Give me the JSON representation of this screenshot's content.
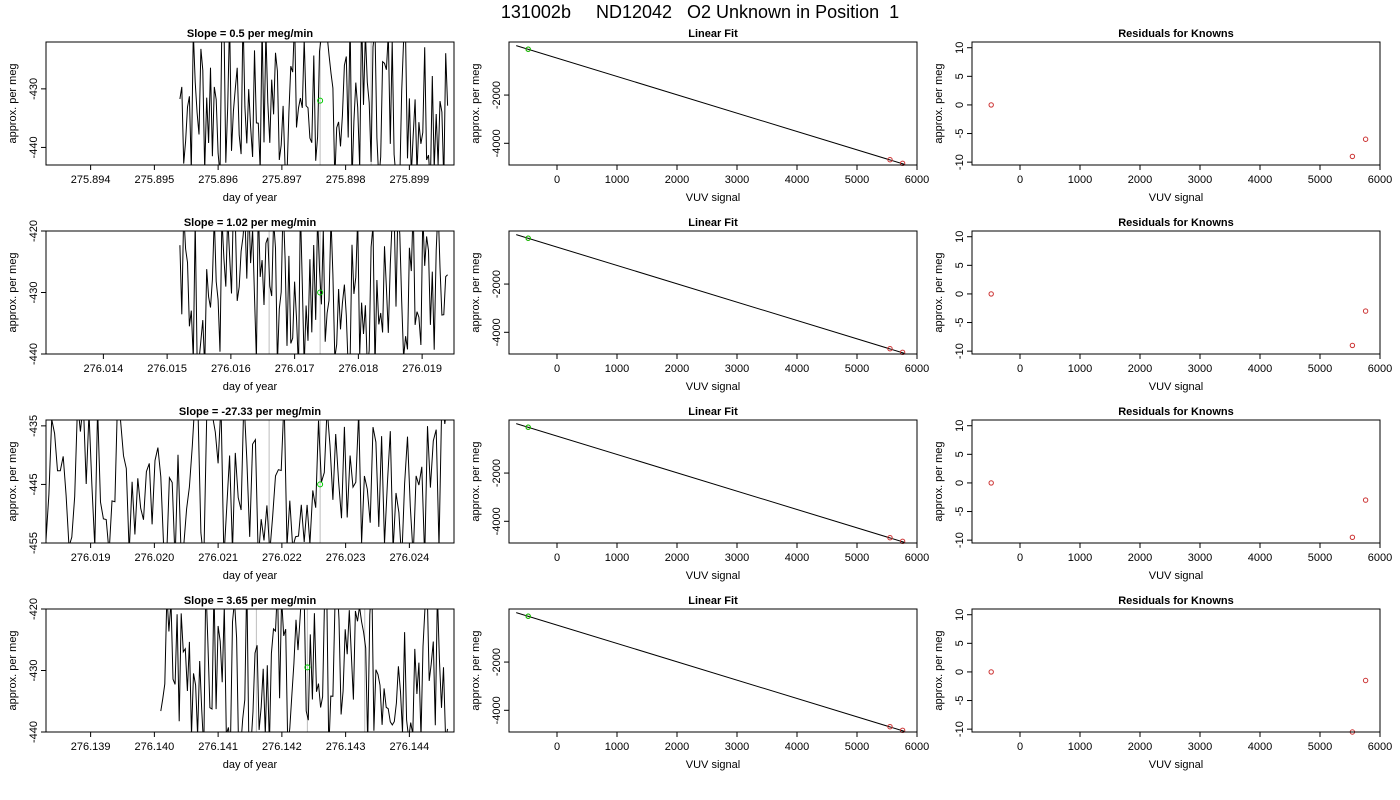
{
  "page_title": "131002b     ND12042   O2 Unknown in Position  1",
  "colors": {
    "trace": "#000000",
    "unknown_point": "#00cc00",
    "known_point": "#cc3333",
    "marker_line": "#bebebe",
    "fit_line": "#000000"
  },
  "chart_data": [
    {
      "type": "line",
      "panel": "time-series-1",
      "title": "Slope =  0.5  per meg/min",
      "xlabel": "day of year",
      "ylabel": "approx. per meg",
      "xlim": [
        275.8933,
        275.8997
      ],
      "ylim": [
        -443,
        -422
      ],
      "xticks": [
        "275.894",
        "275.895",
        "275.896",
        "275.897",
        "275.898",
        "275.899"
      ],
      "yticks": [
        "-440",
        "-430"
      ],
      "marker_lines_x": [
        275.8976,
        275.8984
      ],
      "unknown_point": [
        275.8976,
        -432
      ],
      "trace_start": 275.8954,
      "trace_end": 275.8996
    },
    {
      "type": "line",
      "panel": "time-series-2",
      "title": "Slope =  1.02  per meg/min",
      "xlabel": "day of year",
      "ylabel": "approx. per meg",
      "xlim": [
        276.0131,
        276.0195
      ],
      "ylim": [
        -440,
        -420
      ],
      "xticks": [
        "276.014",
        "276.015",
        "276.016",
        "276.017",
        "276.018",
        "276.019"
      ],
      "yticks": [
        "-440",
        "-430",
        "-420"
      ],
      "marker_lines_x": [
        276.0166,
        276.0174
      ],
      "unknown_point": [
        276.0174,
        -430
      ],
      "trace_start": 276.0152,
      "trace_end": 276.0194
    },
    {
      "type": "line",
      "panel": "time-series-3",
      "title": "Slope =  -27.33  per meg/min",
      "xlabel": "day of year",
      "ylabel": "approx. per meg",
      "xlim": [
        276.0183,
        276.0247
      ],
      "ylim": [
        -455,
        -434
      ],
      "xticks": [
        "276.019",
        "276.020",
        "276.021",
        "276.022",
        "276.023",
        "276.024"
      ],
      "yticks": [
        "-455",
        "-445",
        "-435"
      ],
      "marker_lines_x": [
        276.0218,
        276.0226
      ],
      "unknown_point": [
        276.0226,
        -445
      ],
      "trace_start": 276.0183,
      "trace_end": 276.0246
    },
    {
      "type": "line",
      "panel": "time-series-4",
      "title": "Slope =  3.65  per meg/min",
      "xlabel": "day of year",
      "ylabel": "approx. per meg",
      "xlim": [
        276.1383,
        276.1447
      ],
      "ylim": [
        -440,
        -420
      ],
      "xticks": [
        "276.139",
        "276.140",
        "276.141",
        "276.142",
        "276.143",
        "276.144"
      ],
      "yticks": [
        "-440",
        "-430",
        "-420"
      ],
      "marker_lines_x": [
        276.1416,
        276.1424,
        276.1433
      ],
      "unknown_point": [
        276.1424,
        -429.5
      ],
      "trace_start": 276.1401,
      "trace_end": 276.1446
    },
    {
      "type": "scatter",
      "panel": "linear-fit",
      "title": "Linear Fit",
      "xlabel": "VUV signal",
      "ylabel": "approx. per meg",
      "xlim": [
        -800,
        6000
      ],
      "ylim": [
        -4900,
        200
      ],
      "xticks": [
        0,
        1000,
        2000,
        3000,
        4000,
        5000,
        6000
      ],
      "yticks": [
        -4000,
        -2000
      ],
      "fit_line": [
        [
          -680,
          50
        ],
        [
          5800,
          -4880
        ]
      ],
      "unknown_points": [
        [
          -480,
          -100
        ]
      ],
      "known_points": [
        [
          -480,
          -100
        ],
        [
          5550,
          -4680
        ],
        [
          5760,
          -4830
        ]
      ]
    },
    {
      "type": "scatter",
      "panel": "residuals",
      "title": "Residuals for Knowns",
      "xlabel": "VUV signal",
      "ylabel": "approx. per meg",
      "xlim": [
        -800,
        6000
      ],
      "ylim": [
        -10.5,
        11
      ],
      "xticks": [
        0,
        1000,
        2000,
        3000,
        4000,
        5000,
        6000
      ],
      "yticks": [
        10,
        5,
        0,
        -5,
        -10
      ],
      "rows": [
        [
          [
            -480,
            0
          ],
          [
            5540,
            -9
          ],
          [
            5760,
            -6
          ]
        ],
        [
          [
            -480,
            0
          ],
          [
            5540,
            -9
          ],
          [
            5760,
            -3
          ]
        ],
        [
          [
            -480,
            0
          ],
          [
            5540,
            -9.5
          ],
          [
            5760,
            -3
          ]
        ],
        [
          [
            -480,
            0
          ],
          [
            5540,
            -10.5
          ],
          [
            5760,
            -1.5
          ]
        ]
      ]
    }
  ]
}
